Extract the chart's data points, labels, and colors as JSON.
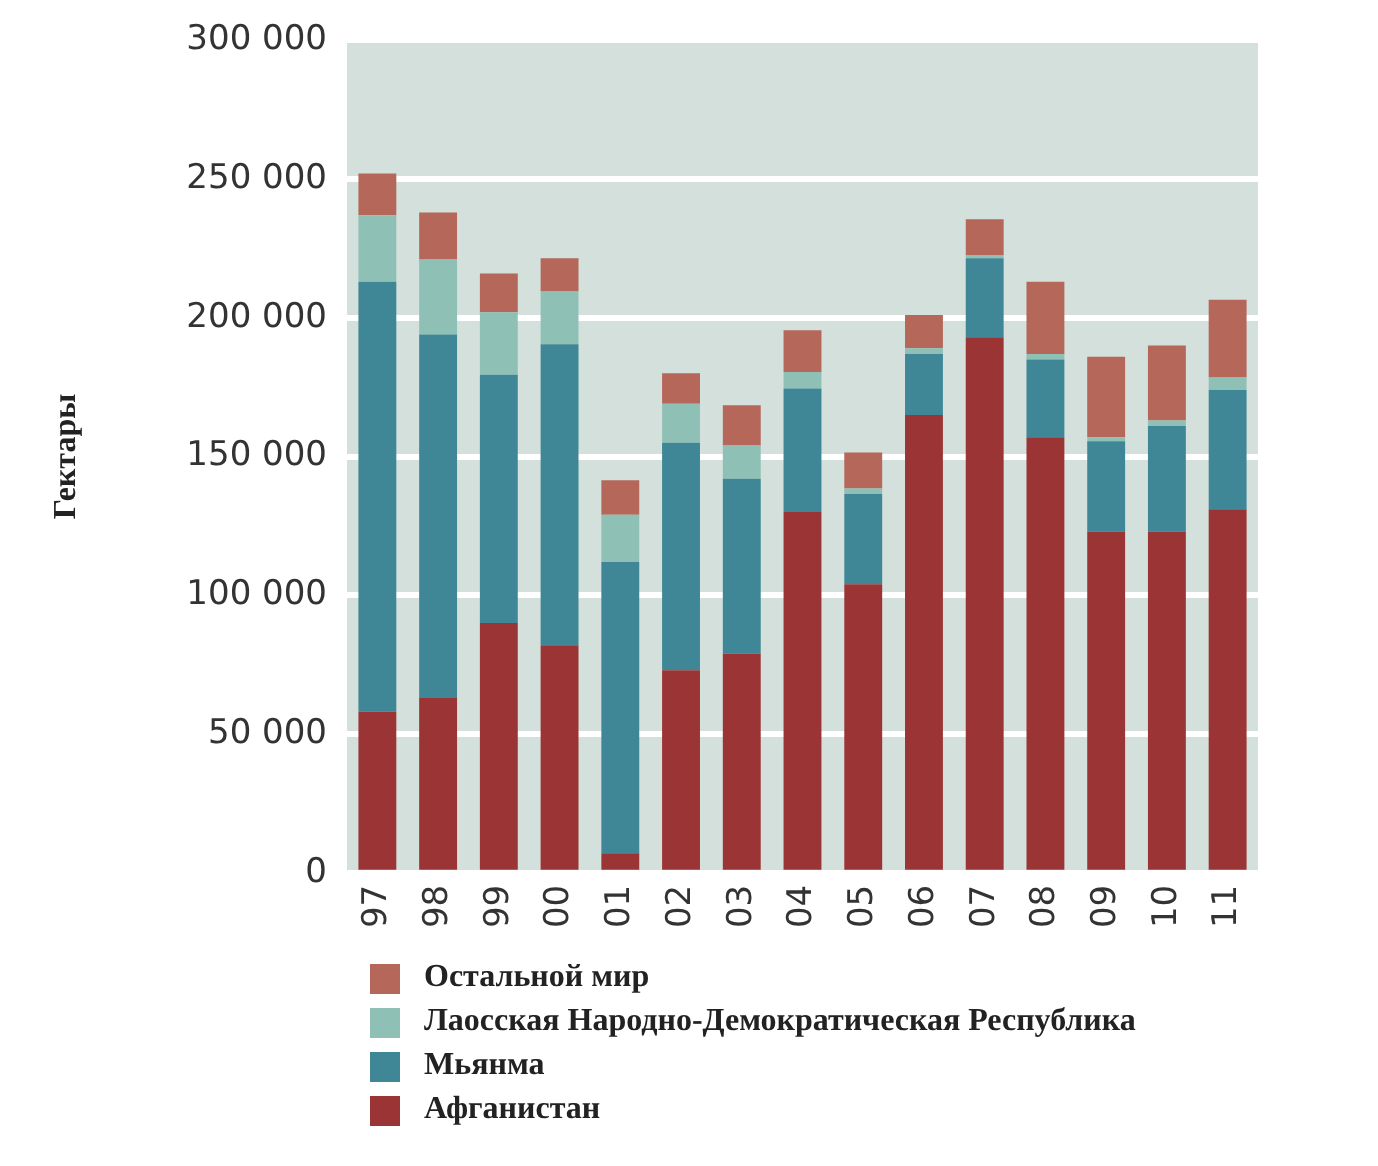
{
  "chart_data": {
    "type": "bar",
    "stacked": true,
    "ylabel": "Гектары",
    "categories": [
      "97",
      "98",
      "99",
      "00",
      "01",
      "02",
      "03",
      "04",
      "05",
      "06",
      "07",
      "08",
      "09",
      "10",
      "11"
    ],
    "series": [
      {
        "name": "Афганистан",
        "color": "#9b3535",
        "values": [
          58000,
          63000,
          90000,
          82000,
          7000,
          73000,
          79000,
          130000,
          104000,
          165000,
          193000,
          157000,
          123000,
          123000,
          131000
        ]
      },
      {
        "name": "Мьянма",
        "color": "#3f8796",
        "values": [
          155000,
          131000,
          89500,
          108500,
          105000,
          82000,
          63000,
          44500,
          32500,
          22000,
          28500,
          28000,
          32500,
          38000,
          43000
        ]
      },
      {
        "name": "Лаосская Народно-Демократическая Республика",
        "color": "#8fc0b6",
        "values": [
          24000,
          27000,
          22500,
          19000,
          17000,
          14000,
          12000,
          6000,
          2000,
          2000,
          1000,
          2000,
          1500,
          2000,
          4500
        ]
      },
      {
        "name": "Остальной мир",
        "color": "#b5675a",
        "values": [
          15000,
          17000,
          14000,
          12000,
          12500,
          11000,
          14500,
          15000,
          13000,
          12000,
          13000,
          26000,
          29000,
          27000,
          28000
        ]
      }
    ],
    "ylim": [
      0,
      300000
    ],
    "yticks": [
      {
        "value": 0,
        "label": "0"
      },
      {
        "value": 50000,
        "label": "50 000"
      },
      {
        "value": 100000,
        "label": "100 000"
      },
      {
        "value": 150000,
        "label": "150 000"
      },
      {
        "value": 200000,
        "label": "200 000"
      },
      {
        "value": 250000,
        "label": "250 000"
      },
      {
        "value": 300000,
        "label": "300 000"
      }
    ],
    "grid": "y",
    "legend": "bottom"
  }
}
